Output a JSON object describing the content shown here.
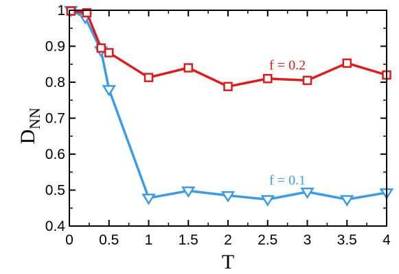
{
  "chart_data": {
    "type": "line",
    "xlabel": "T",
    "ylabel": {
      "main": "D",
      "subscript": "NN"
    },
    "xlim": [
      0,
      4
    ],
    "ylim": [
      0.4,
      1.0
    ],
    "xticks": [
      0,
      0.5,
      1,
      1.5,
      2,
      2.5,
      3,
      3.5,
      4
    ],
    "xtick_labels": [
      "0",
      "0.5",
      "1",
      "1.5",
      "2",
      "2.5",
      "3",
      "3.5",
      "4"
    ],
    "yticks": [
      0.4,
      0.5,
      0.6,
      0.7,
      0.8,
      0.9,
      1.0
    ],
    "ytick_labels": [
      "0.4",
      "0.5",
      "0.6",
      "0.7",
      "0.8",
      "0.9",
      "1"
    ],
    "grid": false,
    "series": [
      {
        "name": "f = 0.2",
        "color": "#e11b1b",
        "marker": "square",
        "x": [
          0.02,
          0.22,
          0.4,
          0.5,
          1.0,
          1.5,
          2.0,
          2.5,
          3.0,
          3.5,
          4.0
        ],
        "y": [
          0.998,
          0.993,
          0.895,
          0.882,
          0.813,
          0.84,
          0.788,
          0.81,
          0.805,
          0.853,
          0.82
        ],
        "label": {
          "text": "f = 0.2",
          "x": 2.75,
          "y": 0.835
        }
      },
      {
        "name": "f = 0.1",
        "color": "#3a9be8",
        "marker": "triangle-down",
        "x": [
          0.02,
          0.2,
          0.4,
          0.5,
          1.0,
          1.5,
          2.0,
          2.5,
          3.0,
          3.5,
          4.0
        ],
        "y": [
          1.0,
          0.98,
          0.888,
          0.78,
          0.478,
          0.498,
          0.485,
          0.474,
          0.495,
          0.474,
          0.493
        ],
        "label": {
          "text": "f = 0.1",
          "x": 2.75,
          "y": 0.515
        }
      }
    ]
  }
}
